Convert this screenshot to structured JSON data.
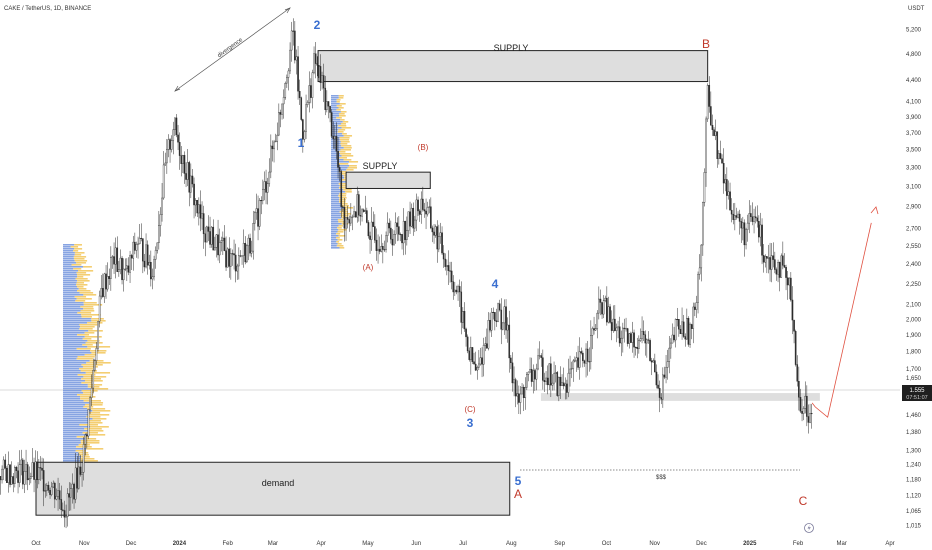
{
  "header": {
    "symbol_title": "CAKE / TetherUS, 1D, BINANCE",
    "price_axis_unit": "USDT"
  },
  "price_tag": {
    "price": "1.555",
    "countdown": "07:51:07"
  },
  "chart_data": {
    "type": "candlestick",
    "y_scale": "log",
    "ylim": [
      1.0,
      5.4
    ],
    "y_ticks": [
      "1,015",
      "1,065",
      "1,120",
      "1,180",
      "1,240",
      "1,300",
      "1,380",
      "1,460",
      "1,550",
      "1,650",
      "1,700",
      "1,800",
      "1,900",
      "2,000",
      "2,100",
      "2,250",
      "2,400",
      "2,550",
      "2,700",
      "2,900",
      "3,100",
      "3,300",
      "3,500",
      "3,700",
      "3,900",
      "4,100",
      "4,400",
      "4,800",
      "5,200"
    ],
    "y_tick_values": [
      1.015,
      1.065,
      1.12,
      1.18,
      1.24,
      1.3,
      1.38,
      1.46,
      1.55,
      1.65,
      1.7,
      1.8,
      1.9,
      2.0,
      2.1,
      2.25,
      2.4,
      2.55,
      2.7,
      2.9,
      3.1,
      3.3,
      3.5,
      3.7,
      3.9,
      4.1,
      4.4,
      4.8,
      5.2
    ],
    "x_ticks": [
      "Oct",
      "Nov",
      "Dec",
      "2024",
      "Feb",
      "Mar",
      "Apr",
      "May",
      "Jun",
      "Jul",
      "Aug",
      "Sep",
      "Oct",
      "Nov",
      "Dec",
      "2025",
      "Feb",
      "Mar",
      "Apr"
    ],
    "x_tick_dates": [
      "2023-10-01",
      "2023-11-01",
      "2023-12-01",
      "2024-01-01",
      "2024-02-01",
      "2024-03-01",
      "2024-04-01",
      "2024-05-01",
      "2024-06-01",
      "2024-07-01",
      "2024-08-01",
      "2024-09-01",
      "2024-10-01",
      "2024-11-01",
      "2024-12-01",
      "2025-01-01",
      "2025-02-01",
      "2025-03-01",
      "2025-04-01"
    ],
    "price_path": [
      [
        "2023-09-01",
        1.2
      ],
      [
        "2023-09-20",
        1.22
      ],
      [
        "2023-10-05",
        1.19
      ],
      [
        "2023-10-15",
        1.13
      ],
      [
        "2023-10-20",
        1.07
      ],
      [
        "2023-10-25",
        1.15
      ],
      [
        "2023-10-31",
        1.26
      ],
      [
        "2023-11-05",
        1.55
      ],
      [
        "2023-11-12",
        2.2
      ],
      [
        "2023-11-20",
        2.45
      ],
      [
        "2023-11-28",
        2.3
      ],
      [
        "2023-12-05",
        2.6
      ],
      [
        "2023-12-15",
        2.35
      ],
      [
        "2023-12-22",
        3.2
      ],
      [
        "2023-12-28",
        3.8
      ],
      [
        "2024-01-05",
        3.3
      ],
      [
        "2024-01-15",
        2.75
      ],
      [
        "2024-01-25",
        2.55
      ],
      [
        "2024-02-05",
        2.42
      ],
      [
        "2024-02-15",
        2.55
      ],
      [
        "2024-02-25",
        3.1
      ],
      [
        "2024-03-05",
        3.9
      ],
      [
        "2024-03-10",
        4.6
      ],
      [
        "2024-03-14",
        5.1
      ],
      [
        "2024-03-20",
        3.7
      ],
      [
        "2024-03-28",
        4.7
      ],
      [
        "2024-04-03",
        4.2
      ],
      [
        "2024-04-10",
        3.6
      ],
      [
        "2024-04-15",
        2.8
      ],
      [
        "2024-04-25",
        2.9
      ],
      [
        "2024-05-05",
        2.6
      ],
      [
        "2024-05-15",
        2.65
      ],
      [
        "2024-05-25",
        2.7
      ],
      [
        "2024-06-05",
        2.95
      ],
      [
        "2024-06-10",
        2.75
      ],
      [
        "2024-06-20",
        2.45
      ],
      [
        "2024-06-28",
        2.15
      ],
      [
        "2024-07-05",
        1.78
      ],
      [
        "2024-07-10",
        1.67
      ],
      [
        "2024-07-20",
        2.05
      ],
      [
        "2024-07-28",
        2.0
      ],
      [
        "2024-08-05",
        1.5
      ],
      [
        "2024-08-10",
        1.62
      ],
      [
        "2024-08-20",
        1.72
      ],
      [
        "2024-09-01",
        1.6
      ],
      [
        "2024-09-10",
        1.68
      ],
      [
        "2024-09-20",
        1.82
      ],
      [
        "2024-09-28",
        2.12
      ],
      [
        "2024-10-05",
        1.95
      ],
      [
        "2024-10-15",
        1.85
      ],
      [
        "2024-10-25",
        1.9
      ],
      [
        "2024-11-05",
        1.58
      ],
      [
        "2024-11-15",
        1.95
      ],
      [
        "2024-11-25",
        1.92
      ],
      [
        "2024-12-01",
        2.6
      ],
      [
        "2024-12-05",
        4.2
      ],
      [
        "2024-12-10",
        3.6
      ],
      [
        "2024-12-18",
        3.0
      ],
      [
        "2024-12-28",
        2.65
      ],
      [
        "2025-01-05",
        2.8
      ],
      [
        "2025-01-10",
        2.5
      ],
      [
        "2025-01-20",
        2.4
      ],
      [
        "2025-01-28",
        2.15
      ],
      [
        "2025-02-02",
        1.45
      ],
      [
        "2025-02-05",
        1.57
      ],
      [
        "2025-02-08",
        1.4
      ],
      [
        "2025-02-10",
        1.52
      ]
    ],
    "projection": [
      [
        "2025-02-12",
        1.5
      ],
      [
        "2025-02-20",
        1.45
      ],
      [
        "2025-03-20",
        2.75
      ]
    ],
    "zones": [
      {
        "label": "SUPPLY",
        "from": "2024-03-30",
        "to": "2024-12-05",
        "low": 4.38,
        "high": 4.85
      },
      {
        "label": "SUPPLY",
        "from": "2024-04-17",
        "to": "2024-06-10",
        "low": 3.08,
        "high": 3.25
      },
      {
        "label": "demand",
        "from": "2023-10-01",
        "to": "2024-07-31",
        "low": 1.05,
        "high": 1.25
      },
      {
        "label": "",
        "from": "2024-08-20",
        "to": "2025-02-15",
        "low": 1.53,
        "high": 1.57
      }
    ],
    "wave_labels": [
      {
        "text": "1",
        "series": "impulse"
      },
      {
        "text": "2",
        "series": "impulse"
      },
      {
        "text": "3",
        "series": "impulse"
      },
      {
        "text": "4",
        "series": "impulse"
      },
      {
        "text": "5",
        "series": "impulse"
      },
      {
        "text": "(A)",
        "series": "minor"
      },
      {
        "text": "(B)",
        "series": "minor"
      },
      {
        "text": "(C)",
        "series": "minor"
      },
      {
        "text": "A",
        "series": "corrective"
      },
      {
        "text": "B",
        "series": "corrective"
      },
      {
        "text": "C",
        "series": "corrective"
      }
    ],
    "annotations": [
      "divergence",
      "$$$"
    ]
  },
  "colors": {
    "candle": "#2a2a2a",
    "zone_fill": "#dedede",
    "zone_border": "#222222",
    "wave_impulse": "#3a6fd0",
    "wave_corrective": "#c0392b",
    "profile_blue": "#5f86d8",
    "profile_yellow": "#f1c24f",
    "projection": "#e05040"
  }
}
